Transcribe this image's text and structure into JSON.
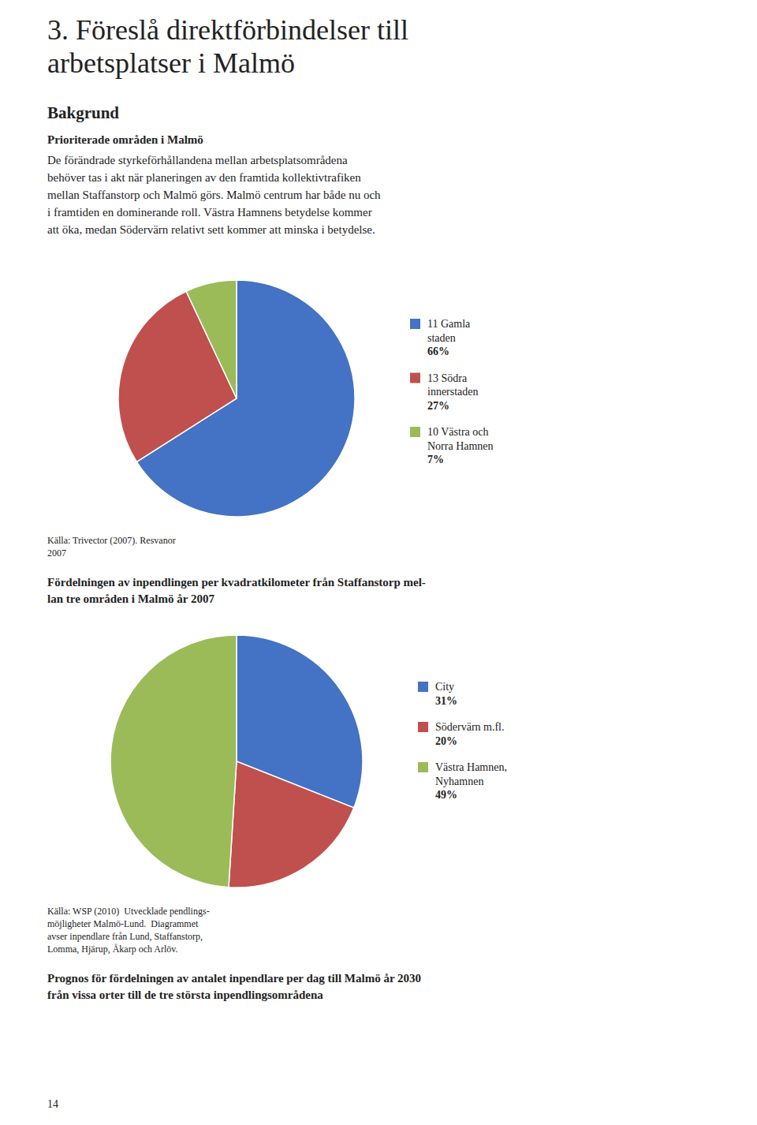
{
  "title": [
    "3. Föreslå direktförbindelser till",
    "arbetsplatser i Malmö"
  ],
  "section_title": "Bakgrund",
  "subsection_title": "Prioriterade områden i Malmö",
  "body_text": [
    "De förändrade styrkeförhållandena mellan arbetsplatsområdena",
    "behöver tas i akt när planeringen av den framtida kollektivtrafiken",
    "mellan Staffanstorp och Malmö görs. Malmö centrum har både nu och",
    "i framtiden en dominerande roll. Västra Hamnens betydelse kommer",
    "att öka, medan Södervärn relativt sett kommer att minska i betydelse."
  ],
  "page_number": "14",
  "chart_data": [
    {
      "type": "pie",
      "title": [
        "Fördelningen av inpendlingen per kvadratkilometer från Staffanstorp mel-",
        "lan tre områden i Malmö år 2007"
      ],
      "categories": [
        "11 Gamla\nstaden",
        "13 Södra\ninnerstaden",
        "10 Västra och\nNorra Hamnen"
      ],
      "values": [
        66,
        27,
        7
      ],
      "value_labels": [
        "66%",
        "27%",
        "7%"
      ],
      "colors": [
        "#4472C4",
        "#C0504D",
        "#9BBB59"
      ],
      "legend": "right",
      "annotations": [
        "Källa: Trivector (2007). Resvanor",
        "2007"
      ]
    },
    {
      "type": "pie",
      "title": [
        "Prognos för fördelningen av antalet inpendlare per dag till Malmö år 2030",
        "från vissa orter till de tre största inpendlingsområdena"
      ],
      "categories": [
        "City",
        "Södervärn m.fl.",
        "Västra Hamnen,\nNyhamnen"
      ],
      "values": [
        31,
        20,
        49
      ],
      "value_labels": [
        "31%",
        "20%",
        "49%"
      ],
      "colors": [
        "#4472C4",
        "#C0504D",
        "#9BBB59"
      ],
      "legend": "right",
      "annotations": [
        "Källa: WSP (2010)  Utvecklade pendlings-",
        "möjligheter Malmö-Lund.  Diagrammet",
        "avser inpendlare från Lund, Staffanstorp,",
        "Lomma, Hjärup, Åkarp och Arlöv."
      ]
    }
  ]
}
